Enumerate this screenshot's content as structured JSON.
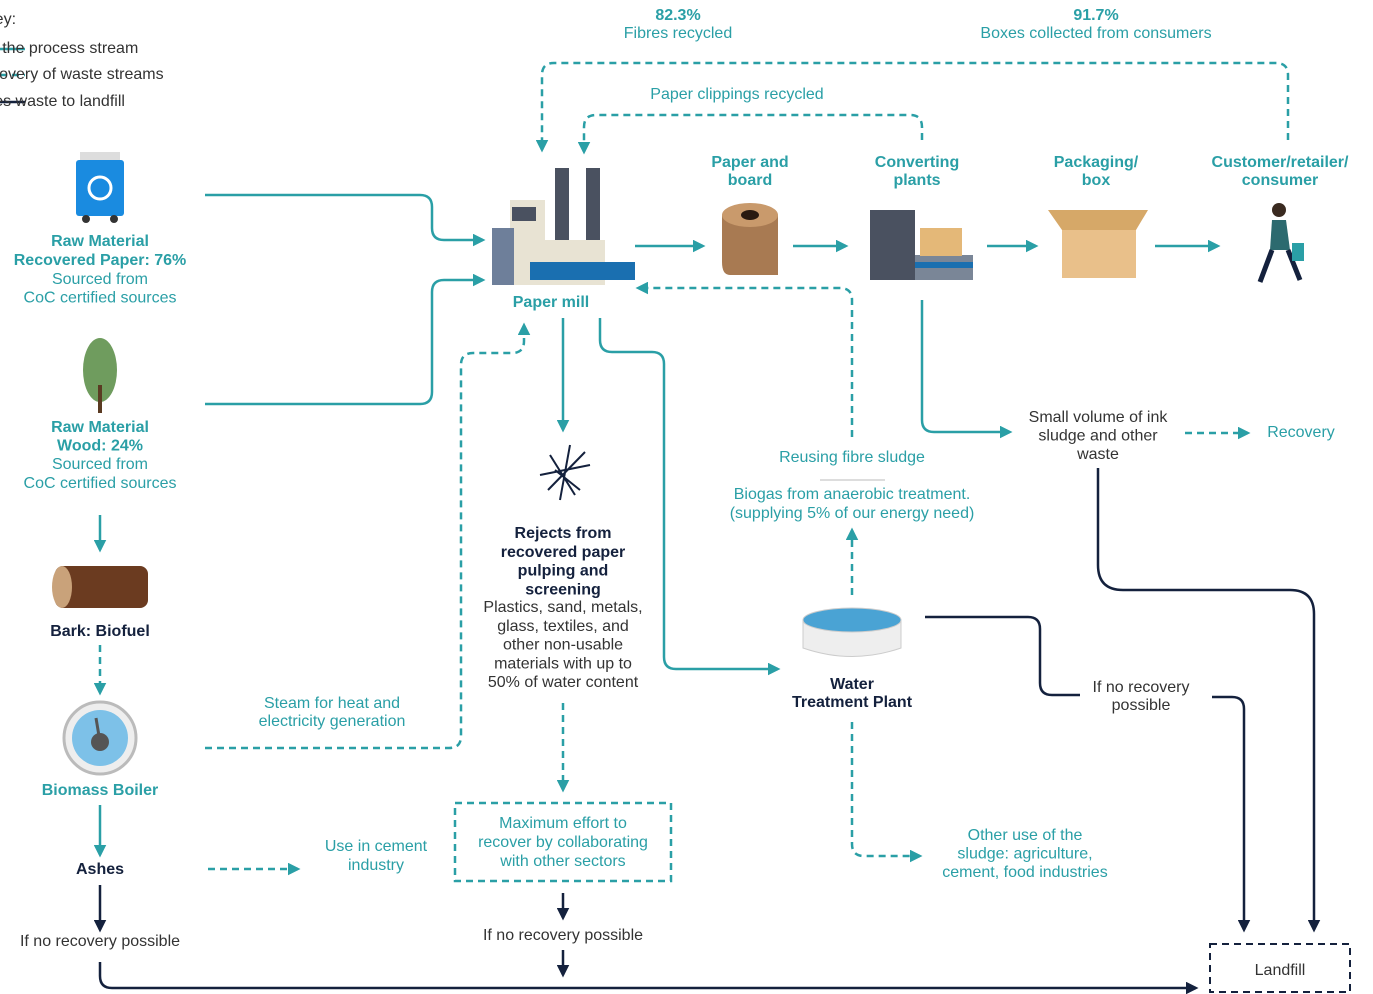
{
  "key": {
    "title": "Key:",
    "items": [
      "Indicates the process stream",
      "Indicates recovery of waste streams",
      "Indicates waste to landfill"
    ]
  },
  "stats": [
    {
      "value": "82.3%",
      "label": "Fibres recycled"
    },
    {
      "value": "91.7%",
      "label": "Boxes collected from consumers"
    }
  ],
  "nodes": [
    {
      "title": [
        "Raw Material",
        "Recovered Paper: 76%"
      ],
      "text": [
        "Sourced from",
        "CoC certified sources"
      ]
    },
    {
      "title": [
        "Raw Material",
        "Wood: 24%"
      ],
      "text": [
        "Sourced from",
        "CoC certified sources"
      ]
    },
    {
      "title": [
        "Bark: Biofuel"
      ]
    },
    {
      "title": [
        "Biomass Boiler"
      ]
    },
    {
      "title": [
        "Ashes"
      ]
    },
    {
      "title": [
        "Paper mill"
      ]
    },
    {
      "title": [
        "Paper and",
        "board"
      ]
    },
    {
      "title": [
        "Converting",
        "plants"
      ]
    },
    {
      "title": [
        "Packaging/",
        "box"
      ]
    },
    {
      "title": [
        "Customer/retailer/",
        "consumer"
      ]
    },
    {
      "title": [
        "Rejects from",
        "recovered paper",
        "pulping and",
        "screening"
      ],
      "text": [
        "Plastics, sand, metals,",
        "glass, textiles, and",
        "other non-usable",
        "materials with up to",
        "50% of water content"
      ]
    },
    {
      "title": [
        "Water",
        "Treatment Plant"
      ]
    },
    {
      "text": [
        "Landfill"
      ]
    }
  ],
  "notes": [
    [
      "Paper clippings recycled"
    ],
    [
      "If no recovery possible"
    ],
    [
      "Use in cement",
      "industry"
    ],
    [
      "Steam for heat and",
      "electricity generation"
    ],
    [
      "Maximum effort to",
      "recover by collaborating",
      "with other sectors"
    ],
    [
      "If no recovery possible"
    ],
    [
      "Reusing fibre sludge"
    ],
    [
      "Biogas from anaerobic treatment.",
      "(supplying 5% of our energy need)"
    ],
    [
      "Small volume of ink",
      "sludge and other",
      "waste"
    ],
    [
      "Recovery"
    ],
    [
      "If no recovery",
      "possible"
    ],
    [
      "Other use of the",
      "sludge: agriculture,",
      "cement, food industries"
    ]
  ]
}
